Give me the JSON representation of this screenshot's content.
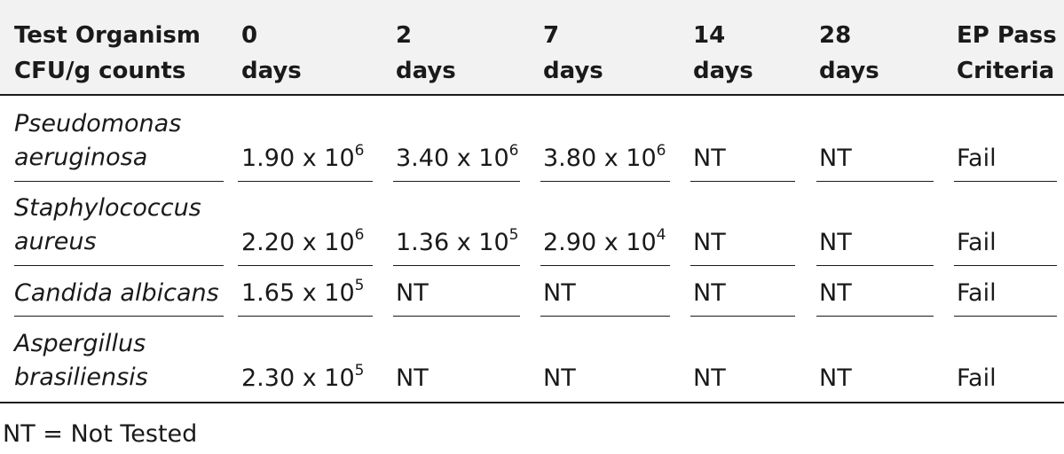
{
  "table": {
    "headers": [
      {
        "line1": "Test Organism",
        "line2": "CFU/g counts"
      },
      {
        "line1": "0",
        "line2": "days"
      },
      {
        "line1": "2",
        "line2": "days"
      },
      {
        "line1": "7",
        "line2": "days"
      },
      {
        "line1": "14",
        "line2": "days"
      },
      {
        "line1": "28",
        "line2": "days"
      },
      {
        "line1": "EP Pass",
        "line2": "Criteria"
      }
    ],
    "rows": [
      {
        "organism": {
          "line1": "Pseudomonas",
          "line2": "aeruginosa"
        },
        "d0": {
          "mantissa": "1.90 x 10",
          "exp": "6"
        },
        "d2": {
          "mantissa": "3.40 x 10",
          "exp": "6"
        },
        "d7": {
          "mantissa": "3.80 x 10",
          "exp": "6"
        },
        "d14": "NT",
        "d28": "NT",
        "criteria": "Fail"
      },
      {
        "organism": {
          "line1": "Staphylococcus",
          "line2": "aureus"
        },
        "d0": {
          "mantissa": "2.20 x 10",
          "exp": "6"
        },
        "d2": {
          "mantissa": "1.36 x 10",
          "exp": "5"
        },
        "d7": {
          "mantissa": "2.90 x 10",
          "exp": "4"
        },
        "d14": "NT",
        "d28": "NT",
        "criteria": "Fail"
      },
      {
        "organism": {
          "line1": "Candida albicans",
          "line2": ""
        },
        "d0": {
          "mantissa": "1.65 x 10",
          "exp": "5"
        },
        "d2": "NT",
        "d7": "NT",
        "d14": "NT",
        "d28": "NT",
        "criteria": "Fail"
      },
      {
        "organism": {
          "line1": "Aspergillus",
          "line2": "brasiliensis"
        },
        "d0": {
          "mantissa": "2.30 x 10",
          "exp": "5"
        },
        "d2": "NT",
        "d7": "NT",
        "d14": "NT",
        "d28": "NT",
        "criteria": "Fail"
      }
    ]
  },
  "footnote": "NT = Not Tested"
}
